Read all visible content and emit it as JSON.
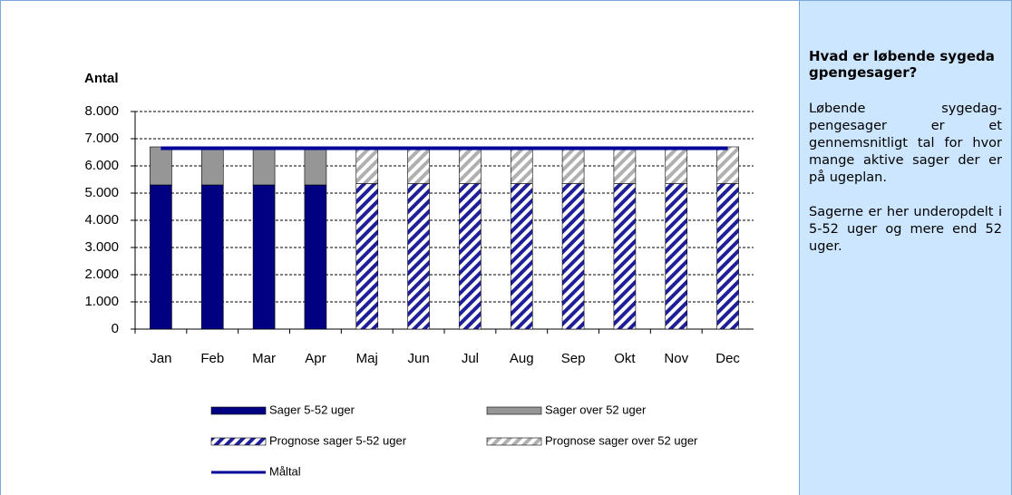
{
  "chart_data": {
    "type": "bar",
    "y_label": "Antal",
    "categories": [
      "Jan",
      "Feb",
      "Mar",
      "Apr",
      "Maj",
      "Jun",
      "Jul",
      "Aug",
      "Sep",
      "Okt",
      "Nov",
      "Dec"
    ],
    "series": [
      {
        "name": "Sager 5-52 uger",
        "color": "#000080",
        "pattern": "solid",
        "values": [
          5300,
          5300,
          5300,
          5300,
          null,
          null,
          null,
          null,
          null,
          null,
          null,
          null
        ]
      },
      {
        "name": "Sager over 52 uger",
        "color": "#969696",
        "pattern": "solid",
        "values": [
          1400,
          1400,
          1400,
          1400,
          null,
          null,
          null,
          null,
          null,
          null,
          null,
          null
        ]
      },
      {
        "name": "Prognose sager 5-52 uger",
        "color": "#1f1f99",
        "pattern": "hatched",
        "values": [
          null,
          null,
          null,
          null,
          5350,
          5350,
          5350,
          5350,
          5350,
          5350,
          5350,
          5350
        ]
      },
      {
        "name": "Prognose sager over 52 uger",
        "color": "#b0b0b0",
        "pattern": "hatched",
        "values": [
          null,
          null,
          null,
          null,
          1350,
          1350,
          1350,
          1350,
          1350,
          1350,
          1350,
          1350
        ]
      },
      {
        "name": "Måltal",
        "color": "#000099",
        "type": "line",
        "values": [
          6650,
          6650,
          6650,
          6650,
          6650,
          6650,
          6650,
          6650,
          6650,
          6650,
          6650,
          6650
        ]
      }
    ],
    "ylim": [
      0,
      8000
    ],
    "yticks": [
      0,
      {
        "value": 1000,
        "label": "1.000"
      },
      {
        "value": 2000,
        "label": "2.000"
      },
      {
        "value": 3000,
        "label": "3.000"
      },
      {
        "value": 4000,
        "label": "4.000"
      },
      {
        "value": 5000,
        "label": "5.000"
      },
      {
        "value": 6000,
        "label": "6.000"
      },
      {
        "value": 7000,
        "label": "7.000"
      },
      {
        "value": 8000,
        "label": "8.000"
      }
    ],
    "grid": true
  },
  "panel": {
    "title": "Hvad er løbende sygedagpengesager?",
    "paragraphs": [
      "Løbende sygedag-pengesager er et gennemsnitligt tal for hvor mange aktive sager der er på ugeplan.",
      "Sagerne er her underopdelt i 5-52 uger og mere end 52 uger."
    ]
  }
}
